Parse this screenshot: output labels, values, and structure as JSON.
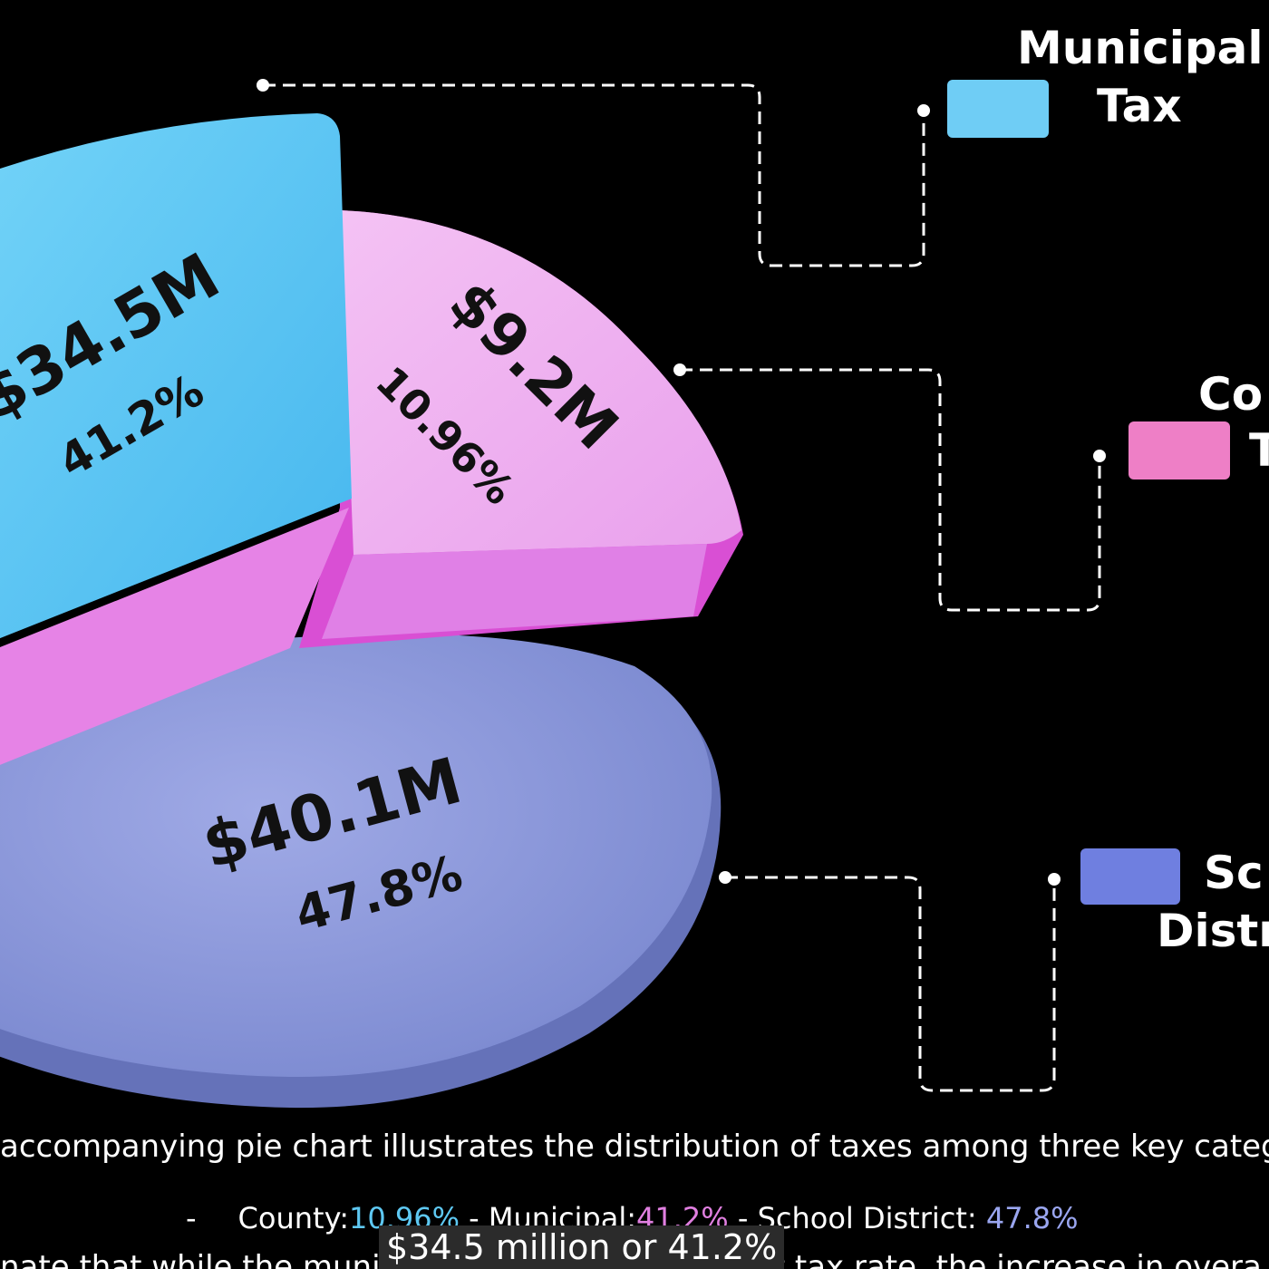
{
  "chart_data": {
    "type": "pie",
    "slices": [
      {
        "name": "Municipal Tax",
        "value_label": "$34.5M",
        "value": 34.5,
        "percent_label": "41.2%",
        "percent": 41.2,
        "color": "#5ec8f2"
      },
      {
        "name": "County Tax",
        "value_label": "$9.2M",
        "value": 9.2,
        "percent_label": "10.96%",
        "percent": 10.96,
        "color": "#f0a8ee"
      },
      {
        "name": "School District",
        "value_label": "$40.1M",
        "value": 40.1,
        "percent_label": "47.8%",
        "percent": 47.8,
        "color": "#8f9bdc"
      }
    ],
    "legend": [
      {
        "label": "Municipal Tax",
        "lines": [
          "Municipal",
          "Tax"
        ],
        "color": "#6fcdf5"
      },
      {
        "label": "County Tax",
        "lines": [
          "Co",
          "T"
        ],
        "color": "#ee7fc6"
      },
      {
        "label": "School District",
        "lines": [
          "Sc",
          "Distr"
        ],
        "color": "#6f7fe0"
      }
    ],
    "legend_position": "right"
  },
  "caption": "accompanying pie chart illustrates the distribution of taxes among three key catego",
  "summary": {
    "dash1": "-",
    "county_label": "County: ",
    "county_value": "10.96%",
    "sep": " - ",
    "municipal_label": "Municipal: ",
    "municipal_value": "41.2%",
    "school_prefix": " - School District: ",
    "school_value": "47.8%"
  },
  "subtitle": "$34.5 million or 41.2%",
  "next_line": "nate that while the municipal tax maintained a flat tax rate, the increase in overa",
  "colors": {
    "county_text": "#5ec8f2",
    "municipal_text": "#e07fe0",
    "school_text": "#9aa6f0"
  }
}
